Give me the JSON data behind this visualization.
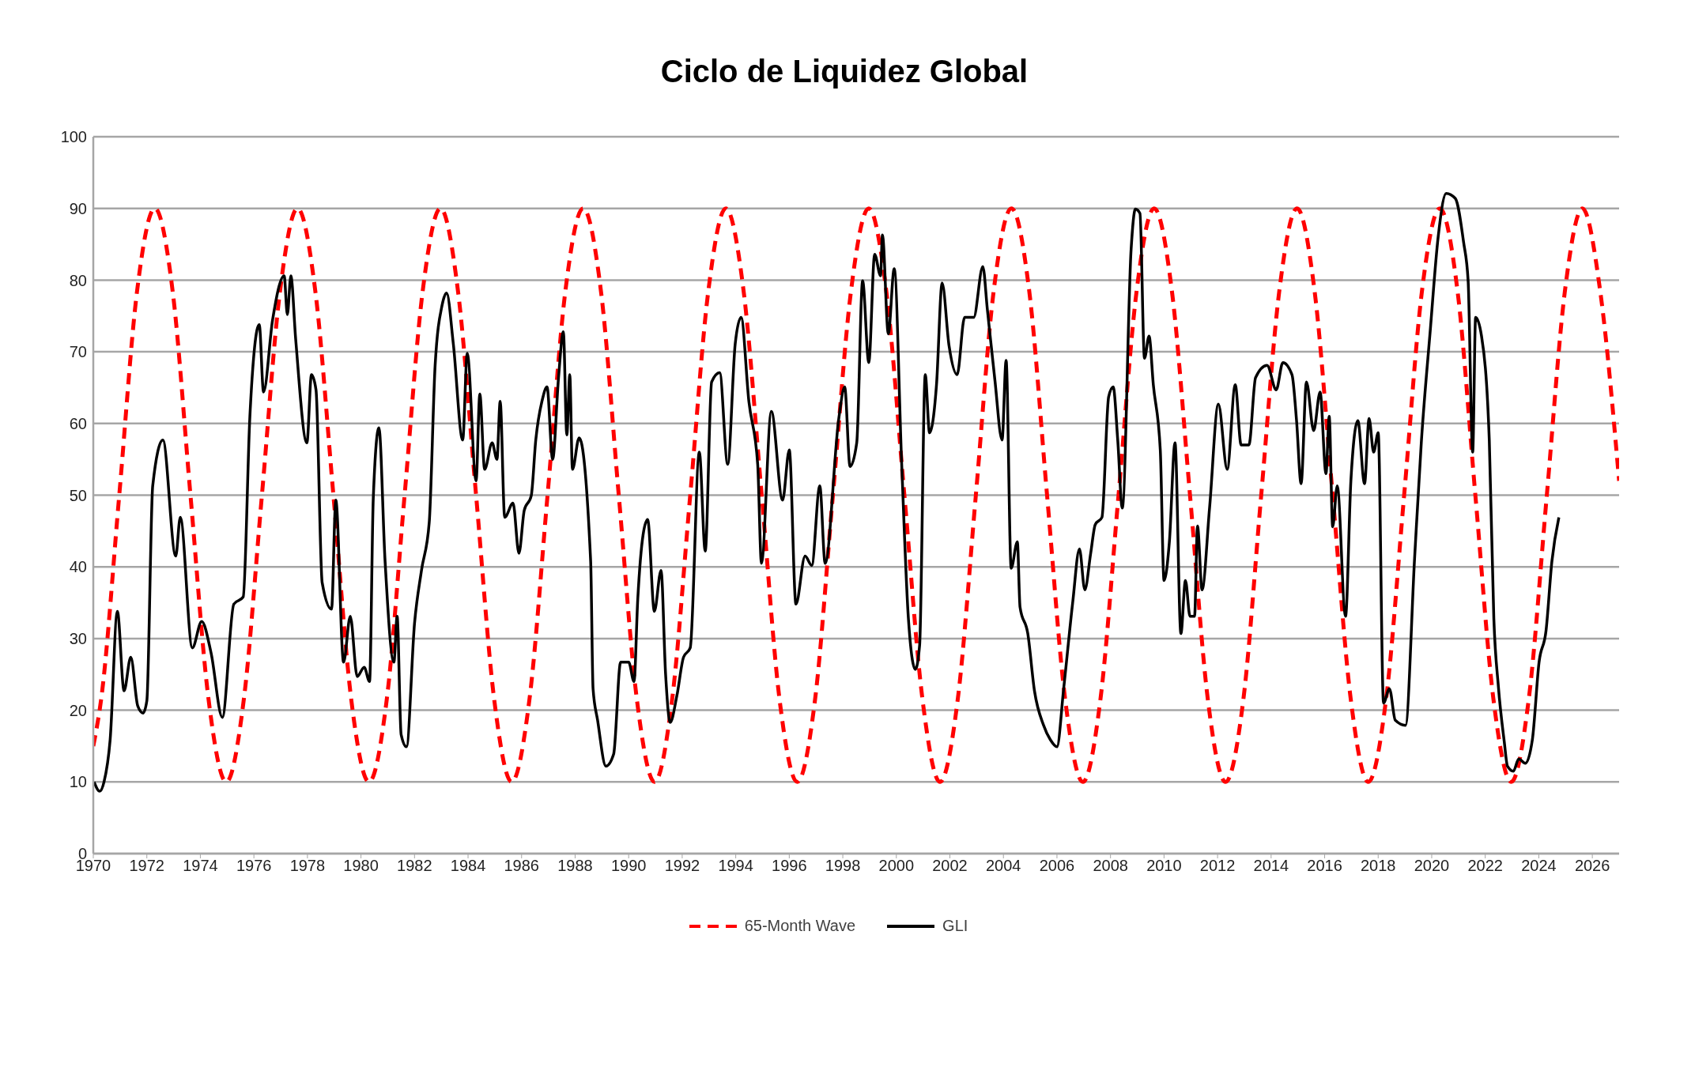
{
  "chart_data": {
    "type": "line",
    "title": "Ciclo de Liquidez Global",
    "xlim": [
      1970,
      2027
    ],
    "xticks": [
      1970,
      1972,
      1974,
      1976,
      1978,
      1980,
      1982,
      1984,
      1986,
      1988,
      1990,
      1992,
      1994,
      1996,
      1998,
      2000,
      2002,
      2004,
      2006,
      2008,
      2010,
      2012,
      2014,
      2016,
      2018,
      2020,
      2022,
      2024,
      2026
    ],
    "ylim": [
      0,
      100
    ],
    "yticks": [
      0,
      10,
      20,
      30,
      40,
      50,
      60,
      70,
      80,
      90,
      100
    ],
    "grid": "y",
    "legend": "bottom",
    "marker": "none",
    "series": [
      {
        "name": "65-Month Wave",
        "color": "#ff0000",
        "line_style": "dashed",
        "x": [
          1970,
          1970.3,
          1970.97,
          1971.63,
          1972.3,
          1972.97,
          1973.63,
          1974.3,
          1974.97,
          1975.63,
          1976.3,
          1976.97,
          1977.63,
          1978.3,
          1978.97,
          1979.63,
          1980.3,
          1980.97,
          1981.63,
          1982.3,
          1982.97,
          1983.63,
          1984.3,
          1984.97,
          1985.63,
          1986.3,
          1986.97,
          1987.63,
          1988.3,
          1988.97,
          1989.63,
          1990.3,
          1990.97,
          1991.63,
          1992.3,
          1992.97,
          1993.63,
          1994.3,
          1994.97,
          1995.63,
          1996.3,
          1996.97,
          1997.63,
          1998.3,
          1998.97,
          1999.63,
          2000.3,
          2000.97,
          2001.63,
          2002.3,
          2002.97,
          2003.63,
          2004.3,
          2004.97,
          2005.63,
          2006.3,
          2006.97,
          2007.63,
          2008.3,
          2008.97,
          2009.63,
          2010.3,
          2010.97,
          2011.63,
          2012.3,
          2012.97,
          2013.63,
          2014.3,
          2014.97,
          2015.63,
          2016.3,
          2016.97,
          2017.63,
          2018.3,
          2018.97,
          2019.63,
          2020.3,
          2020.97,
          2021.63,
          2022.3,
          2022.97,
          2023.63,
          2024.3,
          2024.97,
          2025.63,
          2026.3,
          2027
        ],
        "values": [
          15,
          21.7,
          50,
          78.3,
          90,
          78.3,
          50,
          21.7,
          10,
          21.7,
          50,
          78.3,
          90,
          78.3,
          50,
          21.7,
          10,
          21.7,
          50,
          78.3,
          90,
          78.3,
          50,
          21.7,
          10,
          21.7,
          50,
          78.3,
          90,
          78.3,
          50,
          21.7,
          10,
          21.7,
          50,
          78.3,
          90,
          78.3,
          50,
          21.7,
          10,
          21.7,
          50,
          78.3,
          90,
          78.3,
          50,
          21.7,
          10,
          21.7,
          50,
          78.3,
          90,
          78.3,
          50,
          21.7,
          10,
          21.7,
          50,
          78.3,
          90,
          78.3,
          50,
          21.7,
          10,
          21.7,
          50,
          78.3,
          90,
          78.3,
          50,
          21.7,
          10,
          21.7,
          50,
          78.3,
          90,
          78.3,
          50,
          21.7,
          10,
          21.7,
          50,
          78.3,
          90,
          78.3,
          52
        ]
      },
      {
        "name": "GLI",
        "color": "#000000",
        "line_style": "solid",
        "x": [
          1970.03,
          1970.24,
          1970.4,
          1970.63,
          1970.9,
          1971.15,
          1971.4,
          1971.66,
          1971.86,
          1972,
          1972.22,
          1972.6,
          1973.08,
          1973.25,
          1973.7,
          1974.05,
          1974.4,
          1974.82,
          1975.25,
          1975.6,
          1975.85,
          1976.2,
          1976.36,
          1976.7,
          1977.13,
          1977.25,
          1977.38,
          1977.56,
          1977.98,
          1978.15,
          1978.32,
          1978.55,
          1978.9,
          1979.06,
          1979.35,
          1979.6,
          1979.86,
          1980.12,
          1980.32,
          1980.46,
          1980.67,
          1980.9,
          1981.23,
          1981.35,
          1981.5,
          1981.7,
          1982,
          1982.26,
          1982.55,
          1982.77,
          1983.03,
          1983.2,
          1983.45,
          1983.8,
          1983.97,
          1984.3,
          1984.44,
          1984.62,
          1984.9,
          1985.08,
          1985.2,
          1985.37,
          1985.68,
          1985.9,
          1986.1,
          1986.36,
          1986.53,
          1986.78,
          1986.95,
          1987.16,
          1987.38,
          1987.56,
          1987.69,
          1987.8,
          1987.9,
          1988.15,
          1988.58,
          1988.67,
          1988.84,
          1989.15,
          1989.44,
          1989.7,
          1990,
          1990.2,
          1990.34,
          1990.54,
          1990.71,
          1990.96,
          1991.21,
          1991.38,
          1991.55,
          1991.8,
          1992.05,
          1992.3,
          1992.64,
          1992.86,
          1993.1,
          1993.4,
          1993.7,
          1993.98,
          1994.2,
          1994.49,
          1994.82,
          1994.96,
          1995.33,
          1995.75,
          1996,
          1996.25,
          1996.59,
          1996.84,
          1997.14,
          1997.34,
          1997.85,
          1998.07,
          1998.27,
          1998.52,
          1998.74,
          1998.97,
          1999.19,
          1999.41,
          1999.48,
          1999.7,
          1999.92,
          2000.2,
          2000.45,
          2000.71,
          2000.87,
          2001.08,
          2001.24,
          2001.5,
          2001.71,
          2001.97,
          2002.27,
          2002.55,
          2002.89,
          2003.23,
          2003.4,
          2003.68,
          2003.95,
          2004.1,
          2004.29,
          2004.52,
          2004.62,
          2004.91,
          2005.16,
          2005.5,
          2005.75,
          2006,
          2006.25,
          2006.59,
          2006.84,
          2007.04,
          2007.26,
          2007.43,
          2007.68,
          2007.93,
          2008.1,
          2008.27,
          2008.44,
          2008.77,
          2008.93,
          2009.1,
          2009.27,
          2009.44,
          2009.6,
          2009.86,
          2010,
          2010.2,
          2010.41,
          2010.63,
          2010.8,
          2010.97,
          2011.14,
          2011.25,
          2011.42,
          2011.7,
          2012.03,
          2012.36,
          2012.66,
          2012.88,
          2013.17,
          2013.42,
          2013.85,
          2014.19,
          2014.44,
          2014.78,
          2014.95,
          2015.12,
          2015.32,
          2015.59,
          2015.83,
          2016.05,
          2016.17,
          2016.3,
          2016.47,
          2016.78,
          2016.98,
          2017.24,
          2017.49,
          2017.66,
          2017.83,
          2018,
          2018.2,
          2018.42,
          2018.64,
          2019.02,
          2019.36,
          2019.61,
          2019.95,
          2020.24,
          2020.54,
          2020.88,
          2021.19,
          2021.36,
          2021.53,
          2021.64,
          2021.86,
          2022.15,
          2022.32,
          2022.49,
          2022.71,
          2022.83,
          2023.05,
          2023.25,
          2023.5,
          2023.76,
          2024.01,
          2024.27,
          2024.49,
          2024.75
        ],
        "values": [
          10,
          8.7,
          10,
          15.9,
          33.8,
          22.7,
          27.4,
          20.6,
          19.6,
          21.3,
          51.3,
          57.7,
          41.5,
          46.9,
          28.7,
          32.4,
          28,
          19,
          34.8,
          35.8,
          61,
          73.8,
          64.4,
          74.5,
          80.6,
          75.2,
          80.6,
          71.8,
          57.3,
          66.8,
          64.7,
          37.8,
          34.1,
          49.3,
          26.7,
          33.1,
          24.7,
          26,
          24,
          49.6,
          59.4,
          40.8,
          26.7,
          33.1,
          16.6,
          14.9,
          32.1,
          39.5,
          46.2,
          68.1,
          76.5,
          78.2,
          71.1,
          57.7,
          69.8,
          52,
          64.1,
          53.6,
          57.3,
          55,
          63.1,
          46.9,
          48.9,
          41.9,
          47.9,
          49.9,
          57.7,
          63.4,
          65.1,
          55,
          66.4,
          72.8,
          58.4,
          66.8,
          53.6,
          58,
          40.8,
          23,
          18.6,
          12.2,
          13.9,
          26.7,
          26.7,
          24,
          35.5,
          44.5,
          46.6,
          33.8,
          39.5,
          25,
          18.3,
          22,
          27.4,
          28.7,
          56,
          42.2,
          65.8,
          67.1,
          54.3,
          71.1,
          74.8,
          63.1,
          54.3,
          40.5,
          61.7,
          49.3,
          56.3,
          34.8,
          41.5,
          40.2,
          51.3,
          40.5,
          60.7,
          65.1,
          54,
          57.3,
          79.9,
          68.5,
          83.6,
          80.6,
          86.3,
          72.5,
          81.6,
          54.3,
          32.8,
          25.7,
          29.1,
          66.8,
          58.7,
          65.4,
          79.6,
          70.8,
          66.8,
          74.8,
          74.8,
          81.9,
          75.9,
          66.1,
          57.7,
          68.8,
          39.8,
          43.5,
          34.4,
          30.7,
          22.7,
          17.9,
          15.9,
          14.9,
          23,
          35.1,
          42.5,
          36.8,
          41.9,
          45.9,
          46.9,
          63.7,
          65.1,
          57.7,
          48.2,
          84.3,
          89.9,
          89.3,
          69.1,
          72.2,
          65.4,
          56.3,
          38.1,
          43.5,
          57.3,
          30.7,
          38.1,
          33.1,
          33.1,
          45.7,
          36.8,
          48.2,
          62.7,
          53.6,
          65.4,
          57,
          57,
          66.4,
          68.1,
          64.7,
          68.5,
          66.8,
          60.4,
          51.6,
          65.8,
          59,
          64.4,
          53,
          61,
          45.6,
          51.3,
          33.1,
          52,
          60.4,
          51.6,
          60.7,
          56,
          58.7,
          21,
          23,
          18.6,
          17.9,
          41.2,
          57.3,
          73.2,
          86,
          92.1,
          91.4,
          85.3,
          79.9,
          56,
          74.8,
          72.2,
          57.7,
          32.8,
          23.3,
          15.6,
          12.2,
          11.5,
          13.2,
          12.6,
          15.9,
          26.7,
          31.1,
          40.8,
          46.9
        ]
      }
    ]
  }
}
